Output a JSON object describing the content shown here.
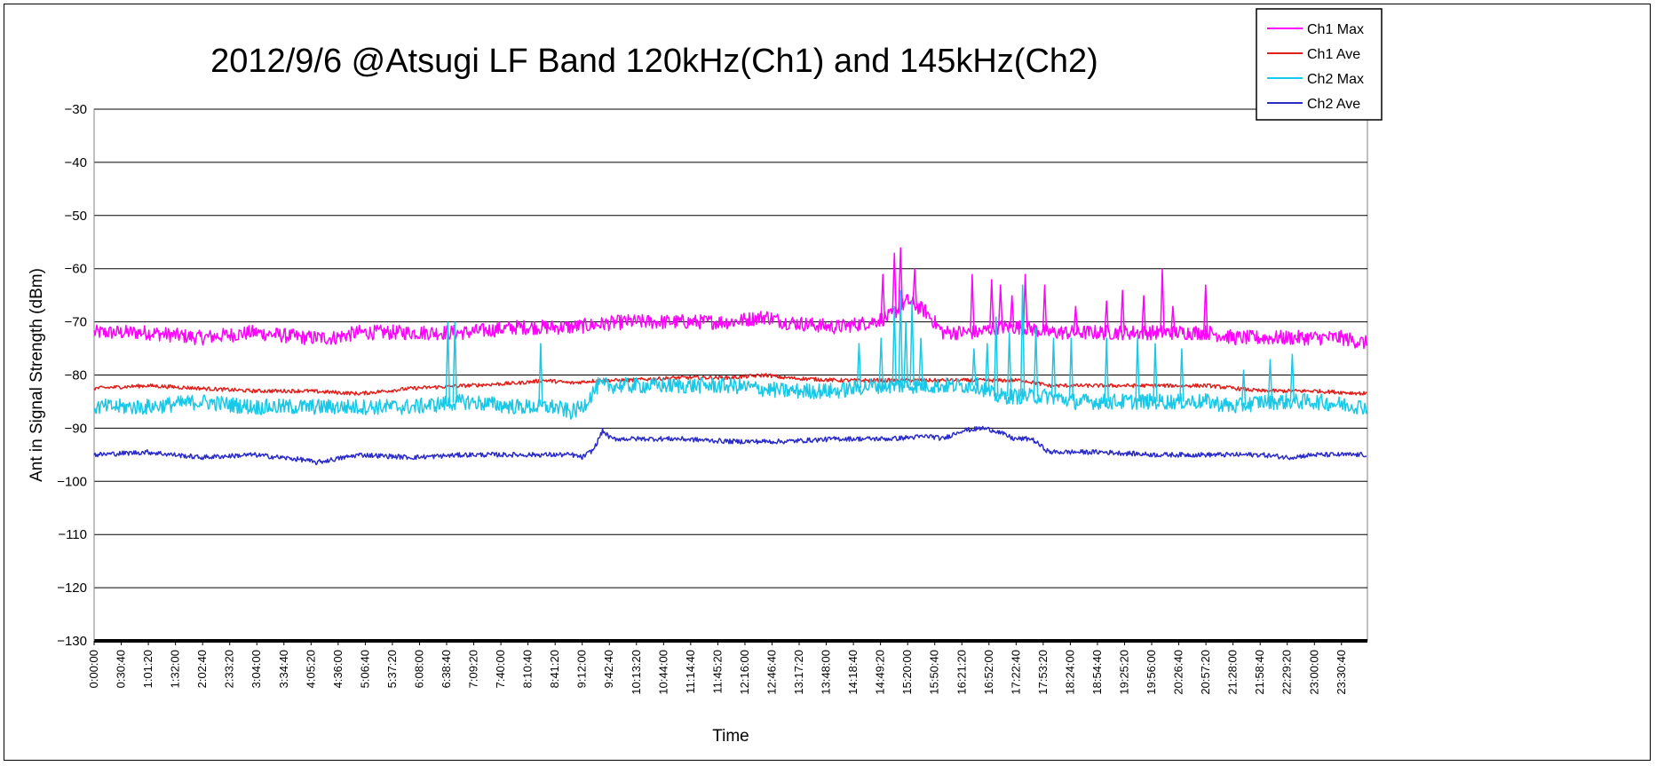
{
  "chart_data": {
    "type": "line",
    "title": "2012/9/6 @Atsugi LF Band 120kHz(Ch1) and 145kHz(Ch2)",
    "xlabel": "Time",
    "ylabel": "Ant in Signal Strength (dBm)",
    "ylim": [
      -130,
      -30
    ],
    "ytick_step": 10,
    "grid": "horizontal",
    "legend": "top-right",
    "x_tick_labels": [
      "0:00:00",
      "0:30:40",
      "1:01:20",
      "1:32:00",
      "2:02:40",
      "2:33:20",
      "3:04:00",
      "3:34:40",
      "4:05:20",
      "4:36:00",
      "5:06:40",
      "5:37:20",
      "6:08:00",
      "6:38:40",
      "7:09:20",
      "7:40:00",
      "8:10:40",
      "8:41:20",
      "9:12:00",
      "9:42:40",
      "10:13:20",
      "10:44:00",
      "11:14:40",
      "11:45:20",
      "12:16:00",
      "12:46:40",
      "13:17:20",
      "13:48:00",
      "14:18:40",
      "14:49:20",
      "15:20:00",
      "15:50:40",
      "16:21:20",
      "16:52:00",
      "17:22:40",
      "17:53:20",
      "18:24:00",
      "18:54:40",
      "19:25:20",
      "19:56:00",
      "20:26:40",
      "20:57:20",
      "21:28:00",
      "21:58:40",
      "22:29:20",
      "23:00:00",
      "23:30:40"
    ],
    "series": [
      {
        "name": "Ch1 Max",
        "color": "#ff00ff",
        "x": [
          "0:00:00",
          "1:00:00",
          "2:00:00",
          "3:00:00",
          "4:00:00",
          "4:30:00",
          "5:00:00",
          "6:00:00",
          "7:00:00",
          "8:00:00",
          "9:00:00",
          "10:00:00",
          "11:00:00",
          "12:00:00",
          "12:40:00",
          "13:00:00",
          "14:00:00",
          "14:40:00",
          "15:00:00",
          "15:20:00",
          "15:40:00",
          "16:00:00",
          "16:40:00",
          "17:00:00",
          "17:30:00",
          "18:00:00",
          "18:30:00",
          "19:00:00",
          "19:30:00",
          "20:00:00",
          "20:30:00",
          "21:00:00",
          "21:30:00",
          "22:00:00",
          "22:30:00",
          "23:00:00",
          "23:30:00",
          "23:59:00"
        ],
        "values": [
          -72,
          -72,
          -73,
          -72,
          -73,
          -73,
          -72,
          -72,
          -72,
          -71,
          -71,
          -70,
          -70,
          -70,
          -69,
          -70,
          -71,
          -70,
          -69,
          -66,
          -68,
          -72,
          -72,
          -71,
          -71,
          -72,
          -72,
          -72,
          -72,
          -72,
          -72,
          -72,
          -73,
          -73,
          -73,
          -73,
          -73,
          -74
        ],
        "spikes": [
          {
            "x": "14:52:00",
            "value": -61
          },
          {
            "x": "15:05:00",
            "value": -57
          },
          {
            "x": "15:12:00",
            "value": -56
          },
          {
            "x": "15:28:00",
            "value": -60
          },
          {
            "x": "16:33:00",
            "value": -61
          },
          {
            "x": "16:55:00",
            "value": -62
          },
          {
            "x": "17:05:00",
            "value": -63
          },
          {
            "x": "17:18:00",
            "value": -65
          },
          {
            "x": "17:33:00",
            "value": -61
          },
          {
            "x": "17:55:00",
            "value": -63
          },
          {
            "x": "18:30:00",
            "value": -67
          },
          {
            "x": "19:05:00",
            "value": -66
          },
          {
            "x": "19:23:00",
            "value": -64
          },
          {
            "x": "19:47:00",
            "value": -65
          },
          {
            "x": "20:08:00",
            "value": -60
          },
          {
            "x": "20:20:00",
            "value": -67
          },
          {
            "x": "20:57:00",
            "value": -63
          }
        ]
      },
      {
        "name": "Ch1 Ave",
        "color": "#e0201b",
        "x": [
          "0:00:00",
          "1:00:00",
          "2:00:00",
          "3:00:00",
          "4:00:00",
          "5:00:00",
          "6:00:00",
          "7:00:00",
          "8:00:00",
          "8:30:00",
          "9:00:00",
          "9:30:00",
          "10:00:00",
          "11:00:00",
          "12:00:00",
          "12:40:00",
          "13:00:00",
          "14:00:00",
          "15:00:00",
          "16:00:00",
          "16:40:00",
          "17:00:00",
          "17:30:00",
          "18:00:00",
          "19:00:00",
          "20:00:00",
          "21:00:00",
          "21:30:00",
          "22:00:00",
          "22:30:00",
          "23:00:00",
          "23:59:00"
        ],
        "values": [
          -82.5,
          -82,
          -82.5,
          -83,
          -83,
          -83.5,
          -82.5,
          -82,
          -81.5,
          -81,
          -81.5,
          -81,
          -81,
          -80.5,
          -80.5,
          -80,
          -80.5,
          -81,
          -81,
          -81,
          -81,
          -81,
          -81,
          -82,
          -82,
          -82,
          -82,
          -82.5,
          -83,
          -83,
          -83,
          -83.5
        ]
      },
      {
        "name": "Ch2 Max",
        "color": "#19c8e6",
        "x": [
          "0:00:00",
          "1:00:00",
          "2:00:00",
          "3:00:00",
          "4:00:00",
          "5:00:00",
          "6:00:00",
          "7:00:00",
          "8:00:00",
          "8:40:00",
          "9:00:00",
          "9:12:00",
          "9:30:00",
          "10:00:00",
          "11:00:00",
          "12:00:00",
          "13:00:00",
          "14:00:00",
          "14:40:00",
          "15:00:00",
          "15:20:00",
          "15:40:00",
          "16:00:00",
          "16:40:00",
          "17:00:00",
          "17:30:00",
          "18:00:00",
          "18:30:00",
          "19:00:00",
          "19:30:00",
          "20:00:00",
          "20:30:00",
          "21:00:00",
          "21:30:00",
          "22:00:00",
          "22:30:00",
          "23:00:00",
          "23:59:00"
        ],
        "values": [
          -86,
          -86,
          -85,
          -86,
          -86,
          -86,
          -86,
          -85,
          -86,
          -86,
          -87,
          -86,
          -82,
          -82,
          -82,
          -82,
          -83,
          -83,
          -82,
          -82,
          -82,
          -82,
          -82,
          -82,
          -84,
          -84,
          -84,
          -85,
          -85,
          -85,
          -85,
          -85,
          -85,
          -86,
          -85,
          -85,
          -85,
          -86
        ],
        "spikes": [
          {
            "x": "6:40:00",
            "value": -70
          },
          {
            "x": "6:48:00",
            "value": -70
          },
          {
            "x": "8:25:00",
            "value": -74
          },
          {
            "x": "14:25:00",
            "value": -74
          },
          {
            "x": "14:50:00",
            "value": -73
          },
          {
            "x": "15:05:00",
            "value": -67
          },
          {
            "x": "15:12:00",
            "value": -64
          },
          {
            "x": "15:18:00",
            "value": -70
          },
          {
            "x": "15:25:00",
            "value": -66
          },
          {
            "x": "15:35:00",
            "value": -73
          },
          {
            "x": "16:35:00",
            "value": -75
          },
          {
            "x": "16:50:00",
            "value": -74
          },
          {
            "x": "17:00:00",
            "value": -69
          },
          {
            "x": "17:15:00",
            "value": -72
          },
          {
            "x": "17:30:00",
            "value": -63
          },
          {
            "x": "17:45:00",
            "value": -71
          },
          {
            "x": "18:05:00",
            "value": -73
          },
          {
            "x": "18:25:00",
            "value": -73
          },
          {
            "x": "19:05:00",
            "value": -73
          },
          {
            "x": "19:40:00",
            "value": -73
          },
          {
            "x": "20:00:00",
            "value": -74
          },
          {
            "x": "20:30:00",
            "value": -75
          },
          {
            "x": "21:40:00",
            "value": -79
          },
          {
            "x": "22:10:00",
            "value": -77
          },
          {
            "x": "22:35:00",
            "value": -76
          }
        ]
      },
      {
        "name": "Ch2 Ave",
        "color": "#2b2bc8",
        "x": [
          "0:00:00",
          "1:00:00",
          "2:00:00",
          "3:00:00",
          "4:00:00",
          "4:10:00",
          "5:00:00",
          "6:00:00",
          "7:00:00",
          "8:00:00",
          "9:00:00",
          "9:12:00",
          "9:25:00",
          "9:35:00",
          "9:45:00",
          "10:00:00",
          "11:00:00",
          "12:00:00",
          "13:00:00",
          "14:00:00",
          "15:00:00",
          "15:45:00",
          "16:00:00",
          "16:20:00",
          "16:45:00",
          "17:00:00",
          "17:20:00",
          "17:40:00",
          "18:00:00",
          "19:00:00",
          "20:00:00",
          "21:00:00",
          "22:00:00",
          "22:30:00",
          "23:00:00",
          "23:59:00"
        ],
        "values": [
          -95,
          -94.5,
          -95.5,
          -95,
          -96,
          -96.5,
          -95,
          -95.5,
          -95,
          -95,
          -95,
          -95.5,
          -94,
          -90.5,
          -92,
          -92,
          -92,
          -92.5,
          -92.5,
          -92,
          -92,
          -91.5,
          -92,
          -90.5,
          -90,
          -90.5,
          -92,
          -92,
          -94.5,
          -94.5,
          -95,
          -95,
          -95,
          -95.5,
          -95,
          -95
        ]
      }
    ]
  }
}
